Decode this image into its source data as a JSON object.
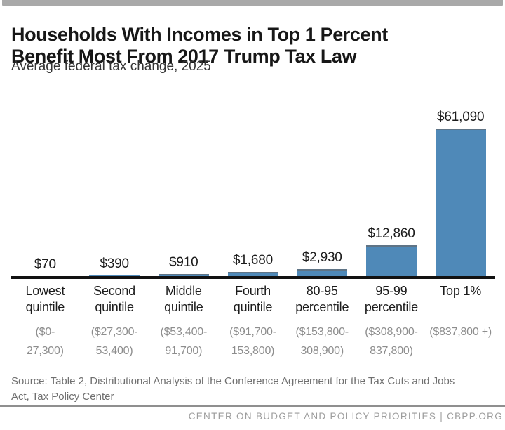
{
  "header": {
    "title_line1": "Households With Incomes in Top 1 Percent",
    "title_line2": "Benefit Most From 2017 Trump Tax Law",
    "subtitle": "Average federal tax change, 2025"
  },
  "chart_data": {
    "type": "bar",
    "title": "Households With Incomes in Top 1 Percent Benefit Most From 2017 Trump Tax Law",
    "subtitle": "Average federal tax change, 2025",
    "categories": [
      "Lowest quintile",
      "Second quintile",
      "Middle quintile",
      "Fourth quintile",
      "80-95 percentile",
      "95-99 percentile",
      "Top 1%"
    ],
    "income_ranges": [
      "($0-27,300)",
      "($27,300-53,400)",
      "($53,400-91,700)",
      "($91,700-153,800)",
      "($153,800-308,900)",
      "($308,900-837,800)",
      "($837,800 +)"
    ],
    "values": [
      70,
      390,
      910,
      1680,
      2930,
      12860,
      61090
    ],
    "value_labels": [
      "$70",
      "$390",
      "$910",
      "$1,680",
      "$2,930",
      "$12,860",
      "$61,090"
    ],
    "category_lines": [
      [
        "Lowest",
        "quintile"
      ],
      [
        "Second",
        "quintile"
      ],
      [
        "Middle",
        "quintile"
      ],
      [
        "Fourth",
        "quintile"
      ],
      [
        "80-95",
        "percentile"
      ],
      [
        "95-99",
        "percentile"
      ],
      [
        "Top 1%",
        ""
      ]
    ],
    "range_lines": [
      [
        "($0-",
        "27,300)"
      ],
      [
        "($27,300-",
        "53,400)"
      ],
      [
        "($53,400-",
        "91,700)"
      ],
      [
        "($91,700-",
        "153,800)"
      ],
      [
        "($153,800-",
        "308,900)"
      ],
      [
        "($308,900-",
        "837,800)"
      ],
      [
        "($837,800 +)",
        ""
      ]
    ],
    "ylim": [
      0,
      61090
    ],
    "bar_color": "#4f89b8",
    "grid": false,
    "legend": false
  },
  "footer": {
    "source": "Source: Table 2, Distributional Analysis of the Conference Agreement for the Tax Cuts and Jobs Act, Tax Policy Center",
    "brand": "CENTER ON BUDGET AND POLICY PRIORITIES | CBPP.ORG"
  }
}
